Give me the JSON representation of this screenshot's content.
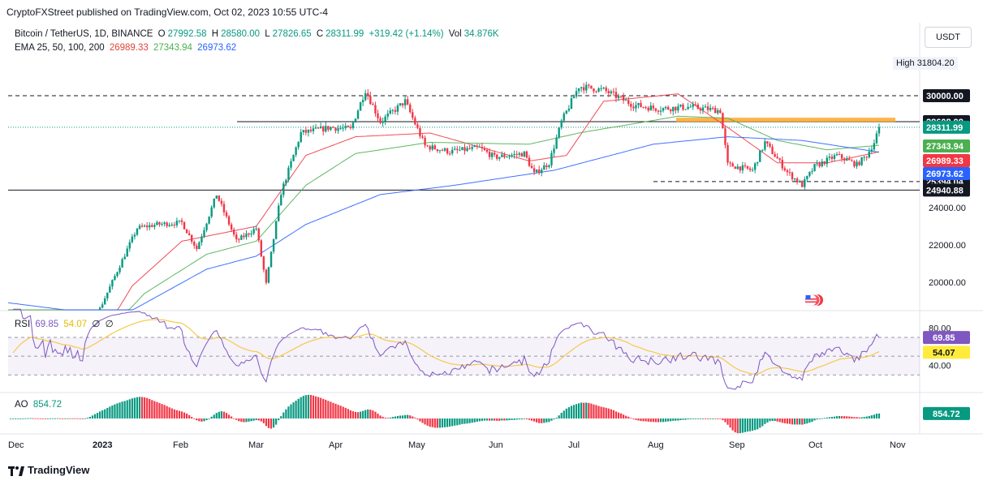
{
  "publisher_line": "CryptoFXStreet published on TradingView.com, Oct 02, 2023 10:55 UTC-4",
  "currency": "USDT",
  "footer_brand": "TradingView",
  "high": {
    "label": "High",
    "value": "31804.20"
  },
  "legend": {
    "symbol": "Bitcoin / TetherUS, 1D, BINANCE",
    "o_label": "O",
    "o": "27992.58",
    "h_label": "H",
    "h": "28580.00",
    "l_label": "L",
    "l": "27826.65",
    "c_label": "C",
    "c": "28311.99",
    "change": "+319.42 (+1.14%)",
    "vol_label": "Vol",
    "vol": "34.876K",
    "ema_label": "EMA 25, 50, 100, 200",
    "ema25": "26989.33",
    "ema50": "27343.94",
    "ema100": "26973.62"
  },
  "rsi_legend": {
    "label": "RSI",
    "rsi": "69.85",
    "ma": "54.07",
    "n1": "∅",
    "n2": "∅"
  },
  "ao_legend": {
    "label": "AO",
    "value": "854.72"
  },
  "colors": {
    "up": "#089981",
    "down": "#f23645",
    "ema25": "#f23645",
    "ema50": "#4caf50",
    "ema100": "#2962ff",
    "rsi": "#7e57c2",
    "rsi_ma": "#f7c948",
    "zone": "#ffa726"
  },
  "chart_data": {
    "type": "candlestick",
    "price_axis_ticks": [
      20000,
      22000,
      24000
    ],
    "price_axis_labels": [
      "20000.00",
      "22000.00",
      "24000.00"
    ],
    "x_tick_labels": [
      "Dec",
      "2023",
      "Feb",
      "Mar",
      "Apr",
      "May",
      "Jun",
      "Jul",
      "Aug",
      "Sep",
      "Oct",
      "Nov"
    ],
    "levels": [
      {
        "value": 30000,
        "label": "30000.00",
        "style": "dashed"
      },
      {
        "value": 28608.98,
        "label": "28608.98",
        "style": "solid"
      },
      {
        "value": 25394.04,
        "label": "25394.04",
        "style": "dashed"
      },
      {
        "value": 24940.88,
        "label": "24940.88",
        "style": "solid"
      }
    ],
    "last_price": {
      "value": 28311.99,
      "label": "28311.99"
    },
    "ema_tags": [
      {
        "value": 27343.94,
        "label": "27343.94",
        "name": "ema50"
      },
      {
        "value": 26989.33,
        "label": "26989.33",
        "name": "ema25"
      },
      {
        "value": 26973.62,
        "label": "26973.62",
        "name": "ema100"
      }
    ],
    "zone": {
      "low": 28680,
      "high": 28820
    },
    "close_anchors": [
      [
        0,
        16500
      ],
      [
        20,
        16600
      ],
      [
        30,
        16550
      ],
      [
        45,
        20900
      ],
      [
        52,
        22900
      ],
      [
        60,
        23100
      ],
      [
        70,
        23200
      ],
      [
        76,
        21800
      ],
      [
        84,
        24700
      ],
      [
        92,
        22200
      ],
      [
        100,
        22900
      ],
      [
        104,
        19900
      ],
      [
        110,
        24800
      ],
      [
        118,
        28000
      ],
      [
        130,
        28300
      ],
      [
        138,
        28200
      ],
      [
        144,
        30300
      ],
      [
        150,
        28600
      ],
      [
        160,
        29700
      ],
      [
        168,
        27300
      ],
      [
        178,
        27000
      ],
      [
        190,
        27200
      ],
      [
        196,
        26700
      ],
      [
        208,
        26900
      ],
      [
        212,
        25800
      ],
      [
        218,
        26400
      ],
      [
        223,
        28600
      ],
      [
        230,
        30500
      ],
      [
        240,
        30300
      ],
      [
        252,
        29500
      ],
      [
        262,
        29300
      ],
      [
        275,
        29400
      ],
      [
        287,
        29200
      ],
      [
        290,
        26300
      ],
      [
        300,
        26000
      ],
      [
        305,
        27500
      ],
      [
        314,
        25900
      ],
      [
        320,
        25200
      ],
      [
        325,
        26200
      ],
      [
        334,
        26800
      ],
      [
        342,
        26300
      ],
      [
        346,
        26800
      ],
      [
        349,
        27500
      ],
      [
        351,
        28311.99
      ]
    ],
    "ema_anchors": {
      "ema25": [
        [
          0,
          16900
        ],
        [
          40,
          17600
        ],
        [
          50,
          19800
        ],
        [
          70,
          22200
        ],
        [
          100,
          23000
        ],
        [
          120,
          26800
        ],
        [
          140,
          27800
        ],
        [
          170,
          28000
        ],
        [
          210,
          26500
        ],
        [
          225,
          26800
        ],
        [
          240,
          29700
        ],
        [
          270,
          30100
        ],
        [
          290,
          28300
        ],
        [
          310,
          26400
        ],
        [
          330,
          26400
        ],
        [
          351,
          26989
        ]
      ],
      "ema50": [
        [
          0,
          17900
        ],
        [
          40,
          17300
        ],
        [
          55,
          19400
        ],
        [
          80,
          21500
        ],
        [
          100,
          22200
        ],
        [
          120,
          25200
        ],
        [
          140,
          26900
        ],
        [
          170,
          27500
        ],
        [
          210,
          27400
        ],
        [
          230,
          28000
        ],
        [
          270,
          28900
        ],
        [
          290,
          28800
        ],
        [
          310,
          27600
        ],
        [
          330,
          27100
        ],
        [
          351,
          27344
        ]
      ],
      "ema100": [
        [
          0,
          18900
        ],
        [
          30,
          18400
        ],
        [
          50,
          18500
        ],
        [
          80,
          20700
        ],
        [
          100,
          21400
        ],
        [
          120,
          23100
        ],
        [
          150,
          24700
        ],
        [
          180,
          25200
        ],
        [
          220,
          26000
        ],
        [
          260,
          27400
        ],
        [
          290,
          27800
        ],
        [
          320,
          27600
        ],
        [
          351,
          26974
        ]
      ]
    },
    "rsi": {
      "ticks": [
        40,
        80
      ],
      "tick_labels": [
        "40.00",
        "80.00"
      ],
      "upper": 70,
      "middle": 50,
      "lower": 30,
      "last": 69.85,
      "ma_last": 54.07
    },
    "ao": {
      "last": 854.72
    }
  }
}
